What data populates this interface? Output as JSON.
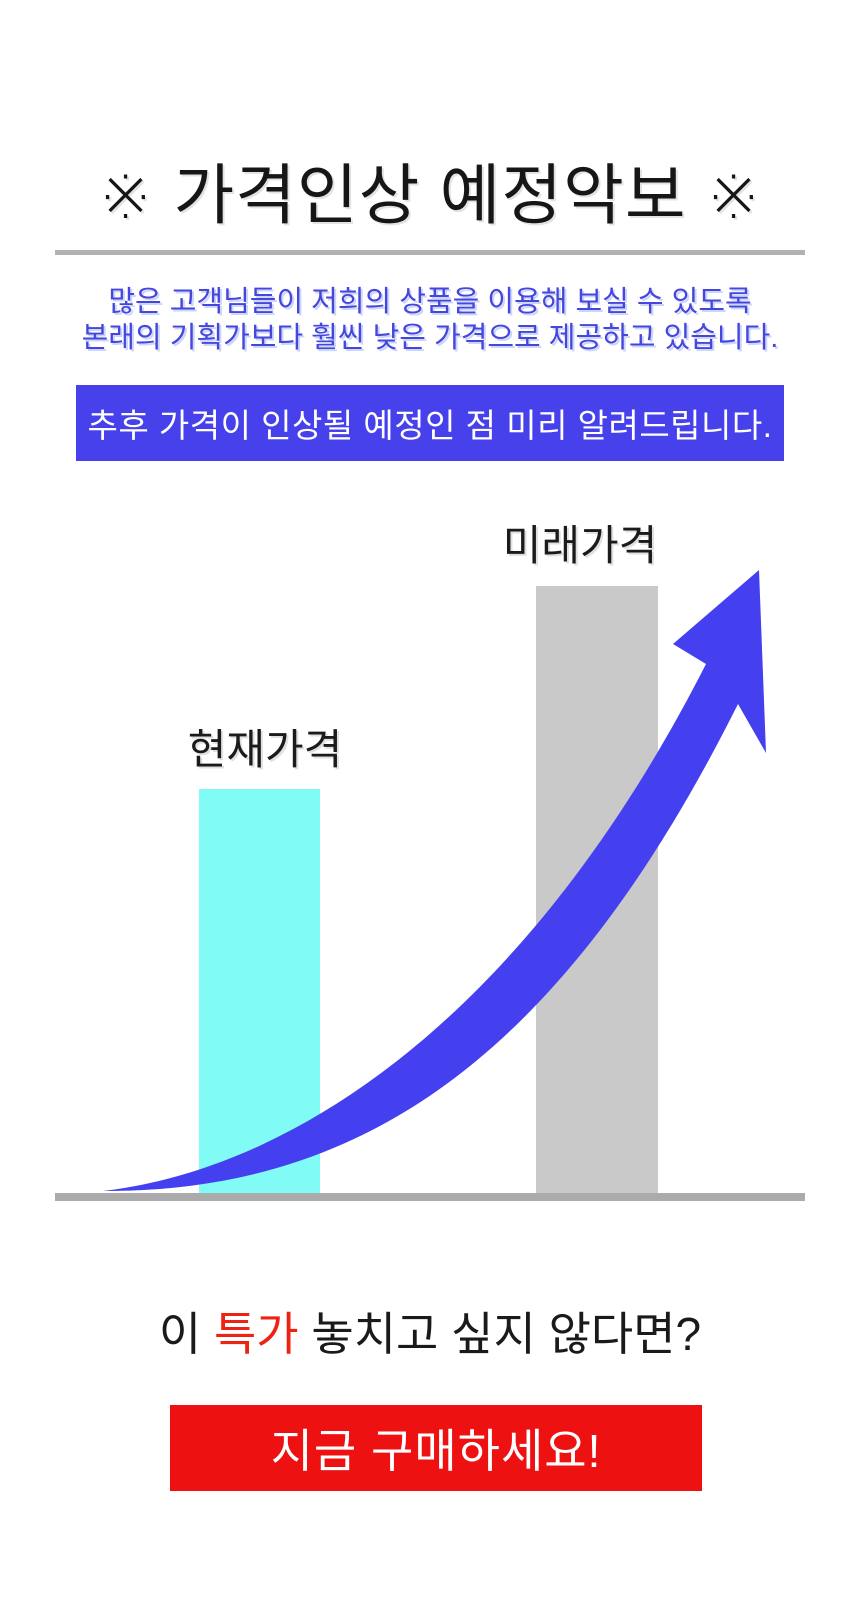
{
  "title": {
    "text": "※ 가격인상 예정악보 ※"
  },
  "intro": {
    "line1": "많은 고객님들이 저희의 상품을 이용해 보실 수 있도록",
    "line2": "본래의 기획가보다 훨씬 낮은 가격으로 제공하고 있습니다.",
    "text_color": "#4646dd"
  },
  "notice_banner": {
    "text": "추후 가격이 인상될 예정인 점 미리 알려드립니다.",
    "bg_color": "#4741ec",
    "text_color": "#ffffff"
  },
  "chart_data": {
    "type": "bar",
    "categories": [
      "현재가격",
      "미래가격"
    ],
    "values": [
      100,
      150
    ],
    "unit": "relative (no numeric axis shown)",
    "series_colors": [
      "#80fbf5",
      "#c9c9c9"
    ],
    "baseline_color": "#ababab",
    "annotation": "curved blue swoosh arrow rising from the current-price bar past the future-price bar",
    "arrow_color": "#4440f0",
    "legend": "none",
    "grid": false
  },
  "cta": {
    "question_prefix": "이 ",
    "question_highlight": "특가",
    "question_suffix": " 놓치고 싶지 않다면?",
    "highlight_color": "#ee2212",
    "button_label": "지금 구매하세요!",
    "button_bg_color": "#ee1111"
  }
}
